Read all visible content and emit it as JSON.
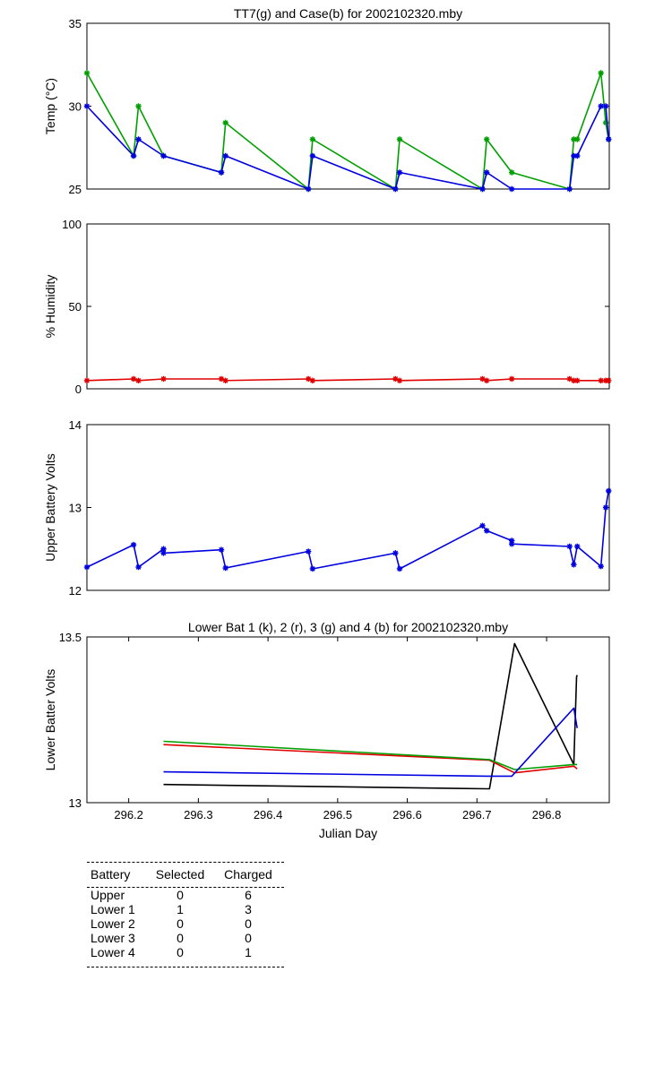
{
  "chart_data": [
    {
      "id": "temp",
      "type": "line",
      "title": "TT7(g) and Case(b) for 2002102320.mby",
      "xlabel": "",
      "ylabel": "Temp  (°C)",
      "xlim": [
        296.14,
        296.89
      ],
      "ylim": [
        25,
        35
      ],
      "yticks": [
        25,
        30,
        35
      ],
      "xticks": [],
      "series": [
        {
          "color": "#00a000",
          "marker": "*",
          "x": [
            296.14,
            296.207,
            296.214,
            296.25,
            296.333,
            296.339,
            296.458,
            296.464,
            296.583,
            296.589,
            296.708,
            296.714,
            296.75,
            296.833,
            296.839,
            296.844,
            296.878,
            296.885,
            296.889
          ],
          "y": [
            32,
            27,
            30,
            27,
            26,
            29,
            25,
            28,
            25,
            28,
            25,
            28,
            26,
            25,
            28,
            28,
            32,
            29,
            28
          ]
        },
        {
          "color": "#0000e0",
          "marker": "*",
          "x": [
            296.14,
            296.207,
            296.214,
            296.25,
            296.333,
            296.339,
            296.458,
            296.464,
            296.583,
            296.589,
            296.708,
            296.714,
            296.75,
            296.833,
            296.839,
            296.844,
            296.878,
            296.885,
            296.889
          ],
          "y": [
            30,
            27,
            28,
            27,
            26,
            27,
            25,
            27,
            25,
            26,
            25,
            26,
            25,
            25,
            27,
            27,
            30,
            30,
            28
          ]
        }
      ]
    },
    {
      "id": "humidity",
      "type": "line",
      "title": "",
      "xlabel": "",
      "ylabel": "% Humidity",
      "xlim": [
        296.14,
        296.89
      ],
      "ylim": [
        0,
        100
      ],
      "yticks": [
        0,
        50,
        100
      ],
      "xticks": [],
      "series": [
        {
          "color": "#e00000",
          "marker": "*",
          "x": [
            296.14,
            296.207,
            296.214,
            296.25,
            296.333,
            296.339,
            296.458,
            296.464,
            296.583,
            296.589,
            296.708,
            296.714,
            296.75,
            296.833,
            296.839,
            296.844,
            296.878,
            296.885,
            296.889
          ],
          "y": [
            5,
            6,
            5,
            6,
            6,
            5,
            6,
            5,
            6,
            5,
            6,
            5,
            6,
            6,
            5,
            5,
            5,
            5,
            5
          ]
        }
      ]
    },
    {
      "id": "upper",
      "type": "line",
      "title": "",
      "xlabel": "",
      "ylabel": "Upper Battery Volts",
      "xlim": [
        296.14,
        296.89
      ],
      "ylim": [
        12,
        14
      ],
      "yticks": [
        12,
        13,
        14
      ],
      "xticks": [],
      "series": [
        {
          "color": "#0000e0",
          "marker": "*",
          "x": [
            296.14,
            296.207,
            296.214,
            296.25,
            296.25,
            296.333,
            296.339,
            296.458,
            296.464,
            296.583,
            296.589,
            296.708,
            296.714,
            296.75,
            296.75,
            296.833,
            296.839,
            296.844,
            296.878,
            296.885,
            296.889
          ],
          "y": [
            12.28,
            12.55,
            12.28,
            12.5,
            12.45,
            12.49,
            12.27,
            12.47,
            12.26,
            12.45,
            12.26,
            12.78,
            12.72,
            12.6,
            12.56,
            12.53,
            12.31,
            12.53,
            12.29,
            13.0,
            13.2
          ]
        }
      ]
    },
    {
      "id": "lower",
      "type": "line",
      "title": "Lower Bat 1 (k), 2 (r), 3 (g) and 4 (b) for 2002102320.mby",
      "xlabel": "Julian Day",
      "ylabel": "Lower Batter Volts",
      "xlim": [
        296.14,
        296.89
      ],
      "ylim": [
        13,
        13.5
      ],
      "yticks": [
        13,
        13.5
      ],
      "xticks": [
        296.2,
        296.3,
        296.4,
        296.5,
        296.6,
        296.7,
        296.8
      ],
      "xticklabels": [
        "296.2",
        "296.3",
        "296.4",
        "296.5",
        "296.6",
        "296.7",
        "296.8"
      ],
      "series": [
        {
          "color": "#000000",
          "marker": "",
          "x": [
            296.25,
            296.714,
            296.718,
            296.754,
            296.839,
            296.843,
            296.844
          ],
          "y": [
            13.055,
            13.042,
            13.042,
            13.48,
            13.115,
            13.38,
            13.385
          ]
        },
        {
          "color": "#e00000",
          "marker": "",
          "x": [
            296.25,
            296.718,
            296.754,
            296.839,
            296.844
          ],
          "y": [
            13.175,
            13.128,
            13.09,
            13.11,
            13.102
          ]
        },
        {
          "color": "#00a000",
          "marker": "",
          "x": [
            296.25,
            296.718,
            296.754,
            296.839,
            296.844
          ],
          "y": [
            13.185,
            13.13,
            13.1,
            13.115,
            13.115
          ]
        },
        {
          "color": "#0000e0",
          "marker": "",
          "x": [
            296.25,
            296.714,
            296.75,
            296.839,
            296.844
          ],
          "y": [
            13.093,
            13.08,
            13.08,
            13.285,
            13.225
          ]
        }
      ]
    }
  ],
  "summary": {
    "headers": [
      "Battery",
      "Selected",
      "Charged"
    ],
    "rows": [
      [
        "Upper",
        "0",
        "6"
      ],
      [
        "Lower 1",
        "1",
        "3"
      ],
      [
        "Lower 2",
        "0",
        "0"
      ],
      [
        "Lower 3",
        "0",
        "0"
      ],
      [
        "Lower 4",
        "0",
        "1"
      ]
    ]
  }
}
